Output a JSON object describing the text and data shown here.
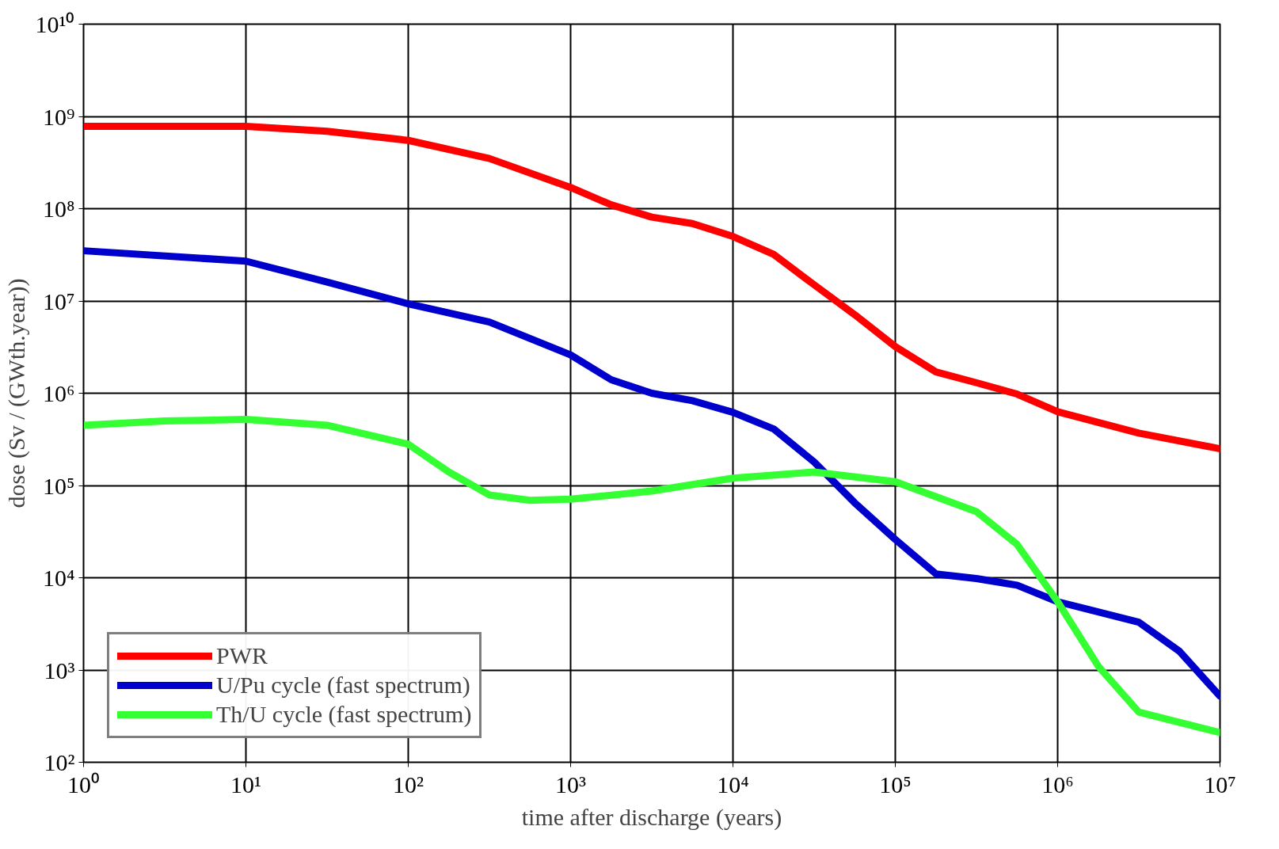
{
  "chart_data": {
    "type": "line",
    "xlabel": "time after discharge (years)",
    "ylabel": "dose (Sv / (GWth.year))",
    "log": "xy",
    "grid": true,
    "legend": "bottom left",
    "line_style": "solid",
    "marker": "none",
    "xlim": [
      1,
      10000000
    ],
    "ylim": [
      100,
      10000000000
    ],
    "xticks": [
      {
        "value": 1,
        "label": "10⁰"
      },
      {
        "value": 10,
        "label": "10¹"
      },
      {
        "value": 100,
        "label": "10²"
      },
      {
        "value": 1000,
        "label": "10³"
      },
      {
        "value": 10000,
        "label": "10⁴"
      },
      {
        "value": 100000,
        "label": "10⁵"
      },
      {
        "value": 1000000,
        "label": "10⁶"
      },
      {
        "value": 10000000,
        "label": "10⁷"
      }
    ],
    "yticks": [
      {
        "value": 100,
        "label": "10²"
      },
      {
        "value": 1000,
        "label": "10³"
      },
      {
        "value": 10000,
        "label": "10⁴"
      },
      {
        "value": 100000,
        "label": "10⁵"
      },
      {
        "value": 1000000,
        "label": "10⁶"
      },
      {
        "value": 10000000,
        "label": "10⁷"
      },
      {
        "value": 100000000,
        "label": "10⁸"
      },
      {
        "value": 1000000000,
        "label": "10⁹"
      },
      {
        "value": 10000000000,
        "label": "10¹⁰"
      }
    ],
    "series": [
      {
        "name": "PWR",
        "color": "#ff0000",
        "x": [
          1,
          3.16,
          10,
          31.6,
          100,
          316,
          1000,
          1780,
          3160,
          5620,
          10000,
          17800,
          31600,
          56200,
          100000,
          178000,
          316000,
          562000,
          1000000,
          3160000,
          10000000
        ],
        "values": [
          780000000.0,
          780000000.0,
          780000000.0,
          690000000.0,
          550000000.0,
          350000000.0,
          170000000.0,
          110000000.0,
          81000000.0,
          69000000.0,
          50000000.0,
          32000000.0,
          15000000.0,
          7100000.0,
          3200000.0,
          1700000.0,
          1300000.0,
          980000.0,
          630000.0,
          370000.0,
          250000.0
        ]
      },
      {
        "name": "U/Pu cycle (fast spectrum)",
        "color": "#0000cc",
        "x": [
          1,
          10,
          31.6,
          100,
          316,
          1000,
          1780,
          3160,
          5620,
          10000,
          17800,
          31600,
          56200,
          100000,
          178000,
          316000,
          562000,
          1000000,
          3160000,
          5620000,
          10000000
        ],
        "values": [
          35000000.0,
          27000000.0,
          16000000.0,
          9300000.0,
          5900000.0,
          2600000.0,
          1400000.0,
          1000000.0,
          830000.0,
          620000.0,
          410000.0,
          180000.0,
          65000.0,
          26000.0,
          11000.0,
          9800.0,
          8300.0,
          5500.0,
          3300.0,
          1600.0,
          520
        ]
      },
      {
        "name": "Th/U cycle (fast spectrum)",
        "color": "#33ff33",
        "x": [
          1,
          3.16,
          10,
          31.6,
          100,
          178,
          316,
          562,
          1000,
          3160,
          10000,
          31600,
          100000,
          316000,
          562000,
          1000000,
          1780000,
          3160000,
          10000000
        ],
        "values": [
          450000.0,
          500000.0,
          520000.0,
          450000.0,
          280000.0,
          140000.0,
          79000.0,
          69000.0,
          71000.0,
          87000.0,
          120000.0,
          140000.0,
          110000.0,
          52000.0,
          23000.0,
          5500.0,
          1100.0,
          350,
          210
        ]
      }
    ]
  }
}
